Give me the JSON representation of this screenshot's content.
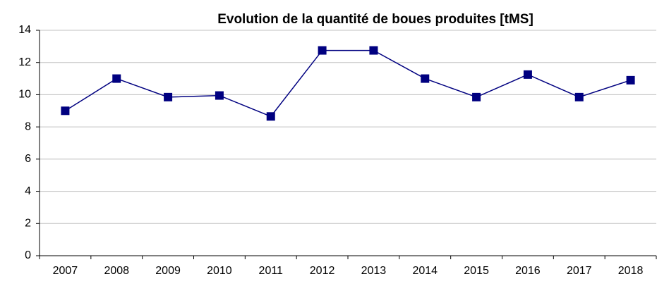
{
  "chart_data": {
    "type": "line",
    "title": "Evolution de la quantité de boues produites [tMS]",
    "categories": [
      "2007",
      "2008",
      "2009",
      "2010",
      "2011",
      "2012",
      "2013",
      "2014",
      "2015",
      "2016",
      "2017",
      "2018"
    ],
    "series": [
      {
        "color": "#000080",
        "values": [
          9.0,
          11.0,
          9.85,
          9.95,
          8.65,
          12.75,
          12.75,
          11.0,
          9.85,
          11.25,
          9.85,
          10.9
        ]
      }
    ],
    "ylim": [
      0,
      14
    ],
    "yticks": [
      0,
      2,
      4,
      6,
      8,
      10,
      12,
      14
    ],
    "grid": true
  }
}
